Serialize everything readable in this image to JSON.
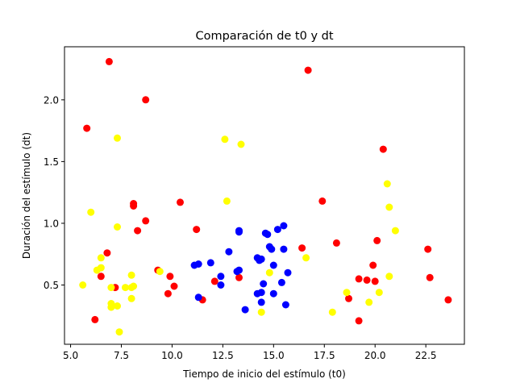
{
  "chart_data": {
    "type": "scatter",
    "title": "Comparación de t0 y dt",
    "xlabel": "Tiempo de inicio del estímulo (t0)",
    "ylabel": "Duración del estímulo (dt)",
    "xlim": [
      4.7,
      24.4
    ],
    "ylim": [
      0.02,
      2.43
    ],
    "xticks": [
      5.0,
      7.5,
      10.0,
      12.5,
      15.0,
      17.5,
      20.0,
      22.5
    ],
    "xtick_labels": [
      "5.0",
      "7.5",
      "10.0",
      "12.5",
      "15.0",
      "17.5",
      "20.0",
      "22.5"
    ],
    "yticks": [
      0.5,
      1.0,
      1.5,
      2.0
    ],
    "ytick_labels": [
      "0.5",
      "1.0",
      "1.5",
      "2.0"
    ],
    "grid": false,
    "legend": "none",
    "series": [
      {
        "color": "#ff0000",
        "points": [
          [
            5.8,
            1.77
          ],
          [
            6.9,
            2.31
          ],
          [
            8.7,
            2.0
          ],
          [
            16.7,
            2.24
          ],
          [
            20.4,
            1.6
          ],
          [
            8.1,
            1.16
          ],
          [
            8.1,
            1.14
          ],
          [
            10.4,
            1.17
          ],
          [
            17.4,
            1.18
          ],
          [
            8.7,
            1.02
          ],
          [
            8.3,
            0.94
          ],
          [
            11.2,
            0.95
          ],
          [
            20.1,
            0.86
          ],
          [
            18.1,
            0.84
          ],
          [
            6.8,
            0.76
          ],
          [
            16.4,
            0.8
          ],
          [
            22.6,
            0.79
          ],
          [
            19.9,
            0.66
          ],
          [
            9.3,
            0.62
          ],
          [
            6.5,
            0.57
          ],
          [
            9.9,
            0.57
          ],
          [
            13.3,
            0.56
          ],
          [
            12.1,
            0.53
          ],
          [
            7.2,
            0.48
          ],
          [
            10.1,
            0.49
          ],
          [
            9.8,
            0.43
          ],
          [
            11.5,
            0.38
          ],
          [
            18.7,
            0.39
          ],
          [
            19.2,
            0.55
          ],
          [
            19.6,
            0.54
          ],
          [
            20.0,
            0.53
          ],
          [
            22.7,
            0.56
          ],
          [
            23.6,
            0.38
          ],
          [
            6.2,
            0.22
          ],
          [
            19.2,
            0.21
          ]
        ]
      },
      {
        "color": "#ffff00",
        "points": [
          [
            7.3,
            1.69
          ],
          [
            12.6,
            1.68
          ],
          [
            13.4,
            1.64
          ],
          [
            20.6,
            1.32
          ],
          [
            12.7,
            1.18
          ],
          [
            20.7,
            1.13
          ],
          [
            6.0,
            1.09
          ],
          [
            7.3,
            0.97
          ],
          [
            21.0,
            0.94
          ],
          [
            6.5,
            0.72
          ],
          [
            16.6,
            0.72
          ],
          [
            6.5,
            0.64
          ],
          [
            6.3,
            0.62
          ],
          [
            9.4,
            0.61
          ],
          [
            14.8,
            0.6
          ],
          [
            20.7,
            0.57
          ],
          [
            8.0,
            0.58
          ],
          [
            5.6,
            0.5
          ],
          [
            7.0,
            0.48
          ],
          [
            7.7,
            0.48
          ],
          [
            8.0,
            0.48
          ],
          [
            8.1,
            0.49
          ],
          [
            18.6,
            0.44
          ],
          [
            20.2,
            0.44
          ],
          [
            8.0,
            0.39
          ],
          [
            7.0,
            0.35
          ],
          [
            7.0,
            0.32
          ],
          [
            7.3,
            0.33
          ],
          [
            19.7,
            0.36
          ],
          [
            14.4,
            0.28
          ],
          [
            17.9,
            0.28
          ],
          [
            7.4,
            0.12
          ]
        ]
      },
      {
        "color": "#0000ff",
        "points": [
          [
            15.5,
            0.98
          ],
          [
            13.3,
            0.94
          ],
          [
            13.3,
            0.93
          ],
          [
            14.6,
            0.92
          ],
          [
            14.7,
            0.91
          ],
          [
            15.2,
            0.95
          ],
          [
            14.8,
            0.81
          ],
          [
            14.9,
            0.79
          ],
          [
            15.5,
            0.79
          ],
          [
            12.8,
            0.77
          ],
          [
            14.2,
            0.72
          ],
          [
            14.3,
            0.7
          ],
          [
            14.4,
            0.71
          ],
          [
            11.1,
            0.66
          ],
          [
            11.3,
            0.67
          ],
          [
            11.9,
            0.68
          ],
          [
            15.0,
            0.66
          ],
          [
            13.2,
            0.61
          ],
          [
            13.3,
            0.62
          ],
          [
            15.7,
            0.6
          ],
          [
            12.4,
            0.57
          ],
          [
            12.4,
            0.5
          ],
          [
            14.5,
            0.51
          ],
          [
            15.4,
            0.52
          ],
          [
            14.2,
            0.43
          ],
          [
            14.4,
            0.44
          ],
          [
            15.0,
            0.43
          ],
          [
            11.3,
            0.4
          ],
          [
            14.4,
            0.36
          ],
          [
            15.6,
            0.34
          ],
          [
            13.6,
            0.3
          ]
        ]
      }
    ]
  }
}
